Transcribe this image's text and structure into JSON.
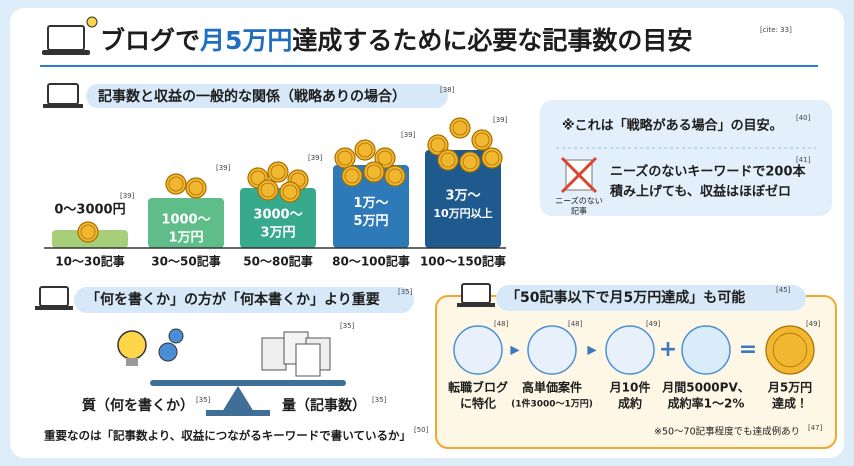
{
  "title": {
    "prefix": "ブログで",
    "highlight": "月5万円",
    "suffix": "達成するために必要な記事数の目安",
    "cite": "[cite: 33]"
  },
  "relation": {
    "heading": "記事数と収益の一般的な関係（戦略ありの場合）",
    "cite": "[38]",
    "tiers": [
      {
        "revenue": [
          "0〜3000円"
        ],
        "cite": "[39]",
        "articles": "10〜30記事"
      },
      {
        "revenue": [
          "1000〜",
          "1万円"
        ],
        "cite": "[39]",
        "articles": "30〜50記事"
      },
      {
        "revenue": [
          "3000〜",
          "3万円"
        ],
        "cite": "[39]",
        "articles": "50〜80記事"
      },
      {
        "revenue": [
          "1万〜",
          "5万円"
        ],
        "cite": "[39]",
        "articles": "80〜100記事"
      },
      {
        "revenue": [
          "3万〜",
          "10万円以上"
        ],
        "cite": "[39]",
        "articles": "100〜150記事"
      }
    ]
  },
  "note": {
    "text": "※これは「戦略がある場合」の目安。",
    "cite": "[40]",
    "icon_label": [
      "ニーズのない",
      "記事"
    ],
    "warning": [
      "ニーズのないキーワードで200本",
      "積み上げても、収益はほぼゼロ"
    ],
    "warning_cite": "[41]"
  },
  "quality": {
    "heading": "「何を書くか」の方が「何本書くか」より重要",
    "cite": "[35]",
    "quality_label": "質（何を書くか）",
    "quality_cite": "[35]",
    "quantity_label": "量（記事数）",
    "quantity_cite": "[35]",
    "docs_cite": "[35]",
    "conclusion": "重要なのは「記事数より、収益につながるキーワードで書いているか」",
    "conclusion_cite": "[50]"
  },
  "example": {
    "heading": "「50記事以下で月5万円達成」も可能",
    "cite": "[45]",
    "steps": [
      {
        "lines": [
          "転職ブログ",
          "に特化"
        ],
        "cite": "[48]"
      },
      {
        "lines": [
          "高単価案件",
          "(1件3000〜1万円)"
        ],
        "cite": "[48]"
      },
      {
        "lines": [
          "月10件",
          "成約"
        ],
        "cite": "[49]"
      },
      {
        "lines": [
          "月間5000PV、",
          "成約率1〜2%"
        ]
      },
      {
        "lines": [
          "月5万円",
          "達成！"
        ],
        "cite": "[49]"
      }
    ],
    "note": "※50〜70記事程度でも達成例あり",
    "note_cite": "[47]"
  }
}
